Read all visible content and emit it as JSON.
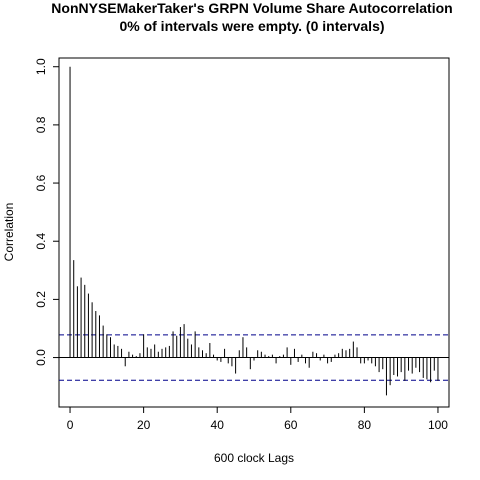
{
  "chart_data": {
    "type": "bar",
    "title": "NonNYSEMakerTaker's GRPN Volume Share Autocorrelation",
    "subtitle": "0% of intervals were empty. (0 intervals)",
    "xlabel": "600 clock Lags",
    "ylabel": "Correlation",
    "xlim": [
      -3,
      103
    ],
    "ylim": [
      -0.17,
      1.03
    ],
    "xticks": [
      0,
      20,
      40,
      60,
      80,
      100
    ],
    "yticks": [
      0.0,
      0.2,
      0.4,
      0.6,
      0.8,
      1.0
    ],
    "xtick_labels": [
      "0",
      "20",
      "40",
      "60",
      "80",
      "100"
    ],
    "ytick_labels": [
      "0.0",
      "0.2",
      "0.4",
      "0.6",
      "0.8",
      "1.0"
    ],
    "confidence_bounds": [
      0.078,
      -0.078
    ],
    "grid": false,
    "lags": [
      0,
      1,
      2,
      3,
      4,
      5,
      6,
      7,
      8,
      9,
      10,
      11,
      12,
      13,
      14,
      15,
      16,
      17,
      18,
      19,
      20,
      21,
      22,
      23,
      24,
      25,
      26,
      27,
      28,
      29,
      30,
      31,
      32,
      33,
      34,
      35,
      36,
      37,
      38,
      39,
      40,
      41,
      42,
      43,
      44,
      45,
      46,
      47,
      48,
      49,
      50,
      51,
      52,
      53,
      54,
      55,
      56,
      57,
      58,
      59,
      60,
      61,
      62,
      63,
      64,
      65,
      66,
      67,
      68,
      69,
      70,
      71,
      72,
      73,
      74,
      75,
      76,
      77,
      78,
      79,
      80,
      81,
      82,
      83,
      84,
      85,
      86,
      87,
      88,
      89,
      90,
      91,
      92,
      93,
      94,
      95,
      96,
      97,
      98,
      99,
      100
    ],
    "values": [
      1.0,
      0.335,
      0.245,
      0.275,
      0.25,
      0.22,
      0.19,
      0.16,
      0.145,
      0.11,
      0.08,
      0.07,
      0.045,
      0.04,
      0.03,
      -0.03,
      0.02,
      0.01,
      0.005,
      0.015,
      0.08,
      0.035,
      0.03,
      0.045,
      0.02,
      0.03,
      0.035,
      0.04,
      0.09,
      0.075,
      0.105,
      0.115,
      0.065,
      0.045,
      0.09,
      0.035,
      0.025,
      0.015,
      0.05,
      0.01,
      -0.01,
      -0.015,
      0.03,
      -0.02,
      -0.03,
      -0.055,
      0.025,
      0.07,
      0.035,
      -0.04,
      -0.01,
      0.025,
      0.02,
      0.01,
      0.005,
      0.01,
      -0.02,
      0.005,
      0.01,
      0.035,
      -0.025,
      0.03,
      -0.015,
      0.01,
      -0.02,
      -0.035,
      0.02,
      0.015,
      -0.01,
      0.01,
      -0.02,
      -0.015,
      0.01,
      0.015,
      0.03,
      0.025,
      0.03,
      0.055,
      0.035,
      -0.02,
      -0.02,
      -0.01,
      -0.02,
      -0.03,
      -0.05,
      -0.04,
      -0.13,
      -0.095,
      -0.06,
      -0.065,
      -0.05,
      -0.08,
      -0.045,
      -0.055,
      -0.035,
      -0.05,
      -0.07,
      -0.075,
      -0.085,
      -0.045,
      -0.08
    ]
  }
}
